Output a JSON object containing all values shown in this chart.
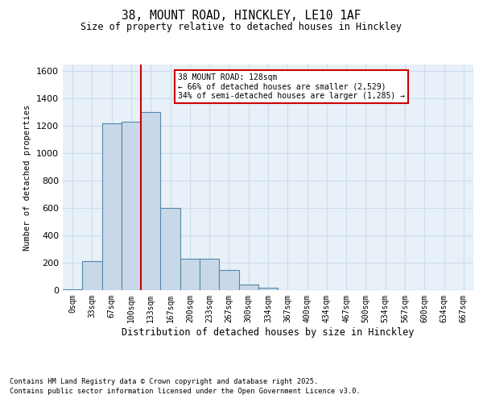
{
  "title_line1": "38, MOUNT ROAD, HINCKLEY, LE10 1AF",
  "title_line2": "Size of property relative to detached houses in Hinckley",
  "xlabel": "Distribution of detached houses by size in Hinckley",
  "ylabel": "Number of detached properties",
  "bar_labels": [
    "0sqm",
    "33sqm",
    "67sqm",
    "100sqm",
    "133sqm",
    "167sqm",
    "200sqm",
    "233sqm",
    "267sqm",
    "300sqm",
    "334sqm",
    "367sqm",
    "400sqm",
    "434sqm",
    "467sqm",
    "500sqm",
    "534sqm",
    "567sqm",
    "600sqm",
    "634sqm",
    "667sqm"
  ],
  "bar_values": [
    5,
    210,
    1220,
    1230,
    1300,
    600,
    230,
    230,
    145,
    40,
    20,
    0,
    0,
    0,
    0,
    0,
    0,
    0,
    0,
    0,
    0
  ],
  "bar_color": "#c8d8e8",
  "bar_edge_color": "#5588aa",
  "property_label": "38 MOUNT ROAD: 128sqm\n← 66% of detached houses are smaller (2,529)\n34% of semi-detached houses are larger (1,285) →",
  "vline_color": "#cc0000",
  "annotation_box_color": "#cc0000",
  "annotation_box_facecolor": "white",
  "ylim": [
    0,
    1650
  ],
  "yticks": [
    0,
    200,
    400,
    600,
    800,
    1000,
    1200,
    1400,
    1600
  ],
  "grid_color": "#ccddee",
  "bg_color": "#e8f0f8",
  "footnote1": "Contains HM Land Registry data © Crown copyright and database right 2025.",
  "footnote2": "Contains public sector information licensed under the Open Government Licence v3.0."
}
